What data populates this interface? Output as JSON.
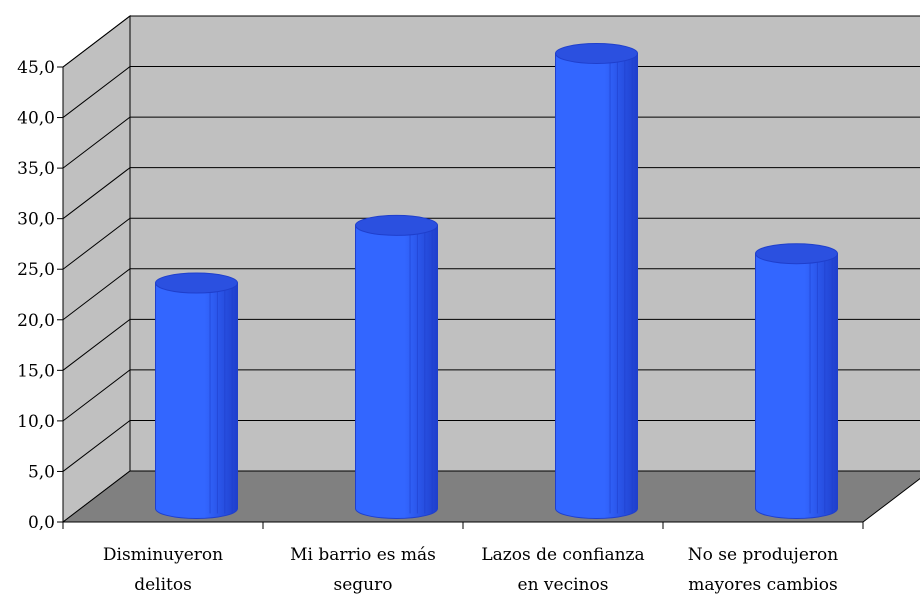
{
  "chart_data": {
    "type": "bar",
    "style": "3d-cylinder",
    "categories": [
      [
        "Disminuyeron",
        "delitos"
      ],
      [
        "Mi barrio es más",
        "seguro"
      ],
      [
        "Lazos de confianza",
        "en vecinos"
      ],
      [
        "No se produjeron",
        "mayores cambios"
      ]
    ],
    "values": [
      22.3,
      28.0,
      45.0,
      25.2
    ],
    "ylim": [
      0,
      45
    ],
    "ytick_step": 5,
    "ytick_labels": [
      "0,0",
      "5,0",
      "10,0",
      "15,0",
      "20,0",
      "25,0",
      "30,0",
      "35,0",
      "40,0",
      "45,0"
    ],
    "grid": true,
    "title": "",
    "xlabel": "",
    "ylabel": "",
    "colors": {
      "bar": "#3366ff",
      "bar_shade": "#1f3fcc",
      "bar_top": "#2b50e0",
      "back_wall": "#c0c0c0",
      "side_wall": "#c0c0c0",
      "floor": "#808080",
      "gridline": "#000000"
    }
  }
}
